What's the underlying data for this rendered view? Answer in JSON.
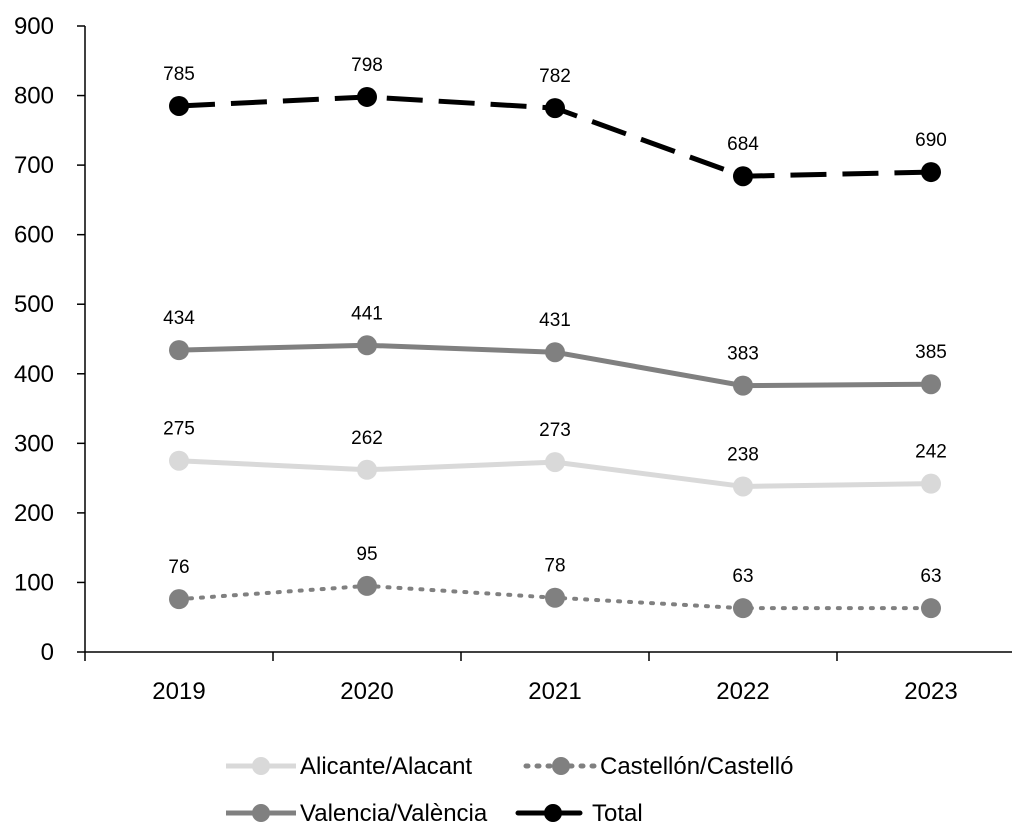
{
  "chart_data": {
    "type": "line",
    "categories": [
      "2019",
      "2020",
      "2021",
      "2022",
      "2023"
    ],
    "ylim": [
      0,
      900
    ],
    "yticks": [
      0,
      100,
      200,
      300,
      400,
      500,
      600,
      700,
      800,
      900
    ],
    "grid": false,
    "legend_position": "bottom",
    "series": [
      {
        "name": "Alicante/Alacant",
        "values": [
          275,
          262,
          273,
          238,
          242
        ],
        "color": "#d9d9d9",
        "dash": "solid",
        "marker_color": "#d9d9d9"
      },
      {
        "name": "Castellón/Castelló",
        "values": [
          76,
          95,
          78,
          63,
          63
        ],
        "color": "#808080",
        "dash": "dotted",
        "marker_color": "#808080"
      },
      {
        "name": "Valencia/València",
        "values": [
          434,
          441,
          431,
          383,
          385
        ],
        "color": "#808080",
        "dash": "solid",
        "marker_color": "#808080"
      },
      {
        "name": "Total",
        "values": [
          785,
          798,
          782,
          684,
          690
        ],
        "color": "#000000",
        "dash": "dashed",
        "marker_color": "#000000"
      }
    ]
  }
}
